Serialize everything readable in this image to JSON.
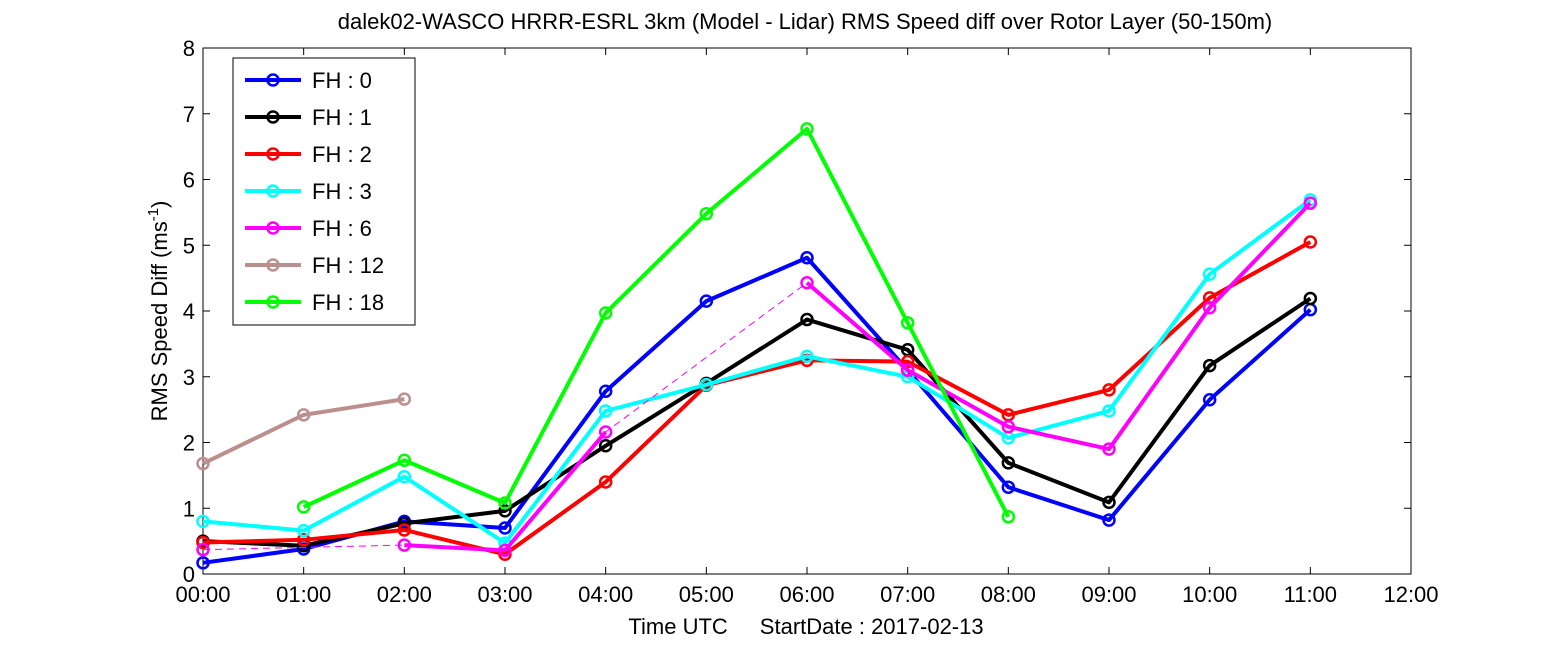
{
  "chart_data": {
    "type": "line",
    "title": "dalek02-WASCO HRRR-ESRL 3km (Model - Lidar) RMS Speed diff over Rotor Layer (50-150m)",
    "xlabel_parts": [
      "Time UTC",
      "StartDate : 2017-02-13"
    ],
    "ylabel": "RMS Speed Diff (ms",
    "ylabel_sup": "-1",
    "ylabel_close": ")",
    "xlim": [
      0,
      12
    ],
    "ylim": [
      0,
      8
    ],
    "grid": false,
    "legend_position": "top-left",
    "x_ticks": [
      "00:00",
      "01:00",
      "02:00",
      "03:00",
      "04:00",
      "05:00",
      "06:00",
      "07:00",
      "08:00",
      "09:00",
      "10:00",
      "11:00",
      "12:00"
    ],
    "y_ticks": [
      "0",
      "1",
      "2",
      "3",
      "4",
      "5",
      "6",
      "7",
      "8"
    ],
    "series": [
      {
        "name": "FH : 0",
        "color": "#0000ff",
        "points": [
          [
            0,
            0.17
          ],
          [
            1,
            0.38
          ],
          [
            2,
            0.8
          ],
          [
            3,
            0.7
          ],
          [
            4,
            2.78
          ],
          [
            5,
            4.15
          ],
          [
            6,
            4.81
          ],
          [
            7,
            3.1
          ],
          [
            8,
            1.32
          ],
          [
            9,
            0.82
          ],
          [
            10,
            2.65
          ],
          [
            11,
            4.02
          ]
        ]
      },
      {
        "name": "FH : 1",
        "color": "#000000",
        "points": [
          [
            0,
            0.5
          ],
          [
            1,
            0.43
          ],
          [
            2,
            0.77
          ],
          [
            3,
            0.96
          ],
          [
            4,
            1.95
          ],
          [
            5,
            2.9
          ],
          [
            6,
            3.87
          ],
          [
            7,
            3.41
          ],
          [
            8,
            1.69
          ],
          [
            9,
            1.09
          ],
          [
            10,
            3.17
          ],
          [
            11,
            4.19
          ]
        ]
      },
      {
        "name": "FH : 2",
        "color": "#ff0000",
        "points": [
          [
            0,
            0.48
          ],
          [
            1,
            0.52
          ],
          [
            2,
            0.67
          ],
          [
            3,
            0.3
          ],
          [
            4,
            1.4
          ],
          [
            5,
            2.87
          ],
          [
            6,
            3.25
          ],
          [
            7,
            3.23
          ],
          [
            8,
            2.42
          ],
          [
            9,
            2.8
          ],
          [
            10,
            4.2
          ],
          [
            11,
            5.05
          ]
        ]
      },
      {
        "name": "FH : 3",
        "color": "#00ffff",
        "points": [
          [
            0,
            0.8
          ],
          [
            1,
            0.66
          ],
          [
            2,
            1.48
          ],
          [
            3,
            0.47
          ],
          [
            4,
            2.48
          ],
          [
            5,
            2.88
          ],
          [
            6,
            3.31
          ],
          [
            7,
            3.0
          ],
          [
            8,
            2.07
          ],
          [
            9,
            2.48
          ],
          [
            10,
            4.56
          ],
          [
            11,
            5.69
          ]
        ]
      },
      {
        "name": "FH : 6",
        "color": "#ff00ff",
        "points": [
          [
            0,
            0.37
          ],
          [
            1,
            null
          ],
          [
            2,
            0.44
          ],
          [
            3,
            0.36
          ],
          [
            4,
            2.16
          ],
          [
            5,
            null
          ],
          [
            6,
            4.43
          ],
          [
            7,
            3.1
          ],
          [
            8,
            2.24
          ],
          [
            9,
            1.9
          ],
          [
            10,
            4.05
          ],
          [
            11,
            5.64
          ]
        ]
      },
      {
        "name": "FH : 12",
        "color": "#bc8f8f",
        "points": [
          [
            0,
            1.68
          ],
          [
            1,
            2.42
          ],
          [
            2,
            2.66
          ]
        ]
      },
      {
        "name": "FH : 18",
        "color": "#00ff00",
        "points": [
          [
            1,
            1.02
          ],
          [
            2,
            1.73
          ],
          [
            3,
            1.08
          ],
          [
            4,
            3.97
          ],
          [
            5,
            5.48
          ],
          [
            6,
            6.77
          ],
          [
            7,
            3.82
          ],
          [
            8,
            0.87
          ]
        ]
      }
    ]
  }
}
